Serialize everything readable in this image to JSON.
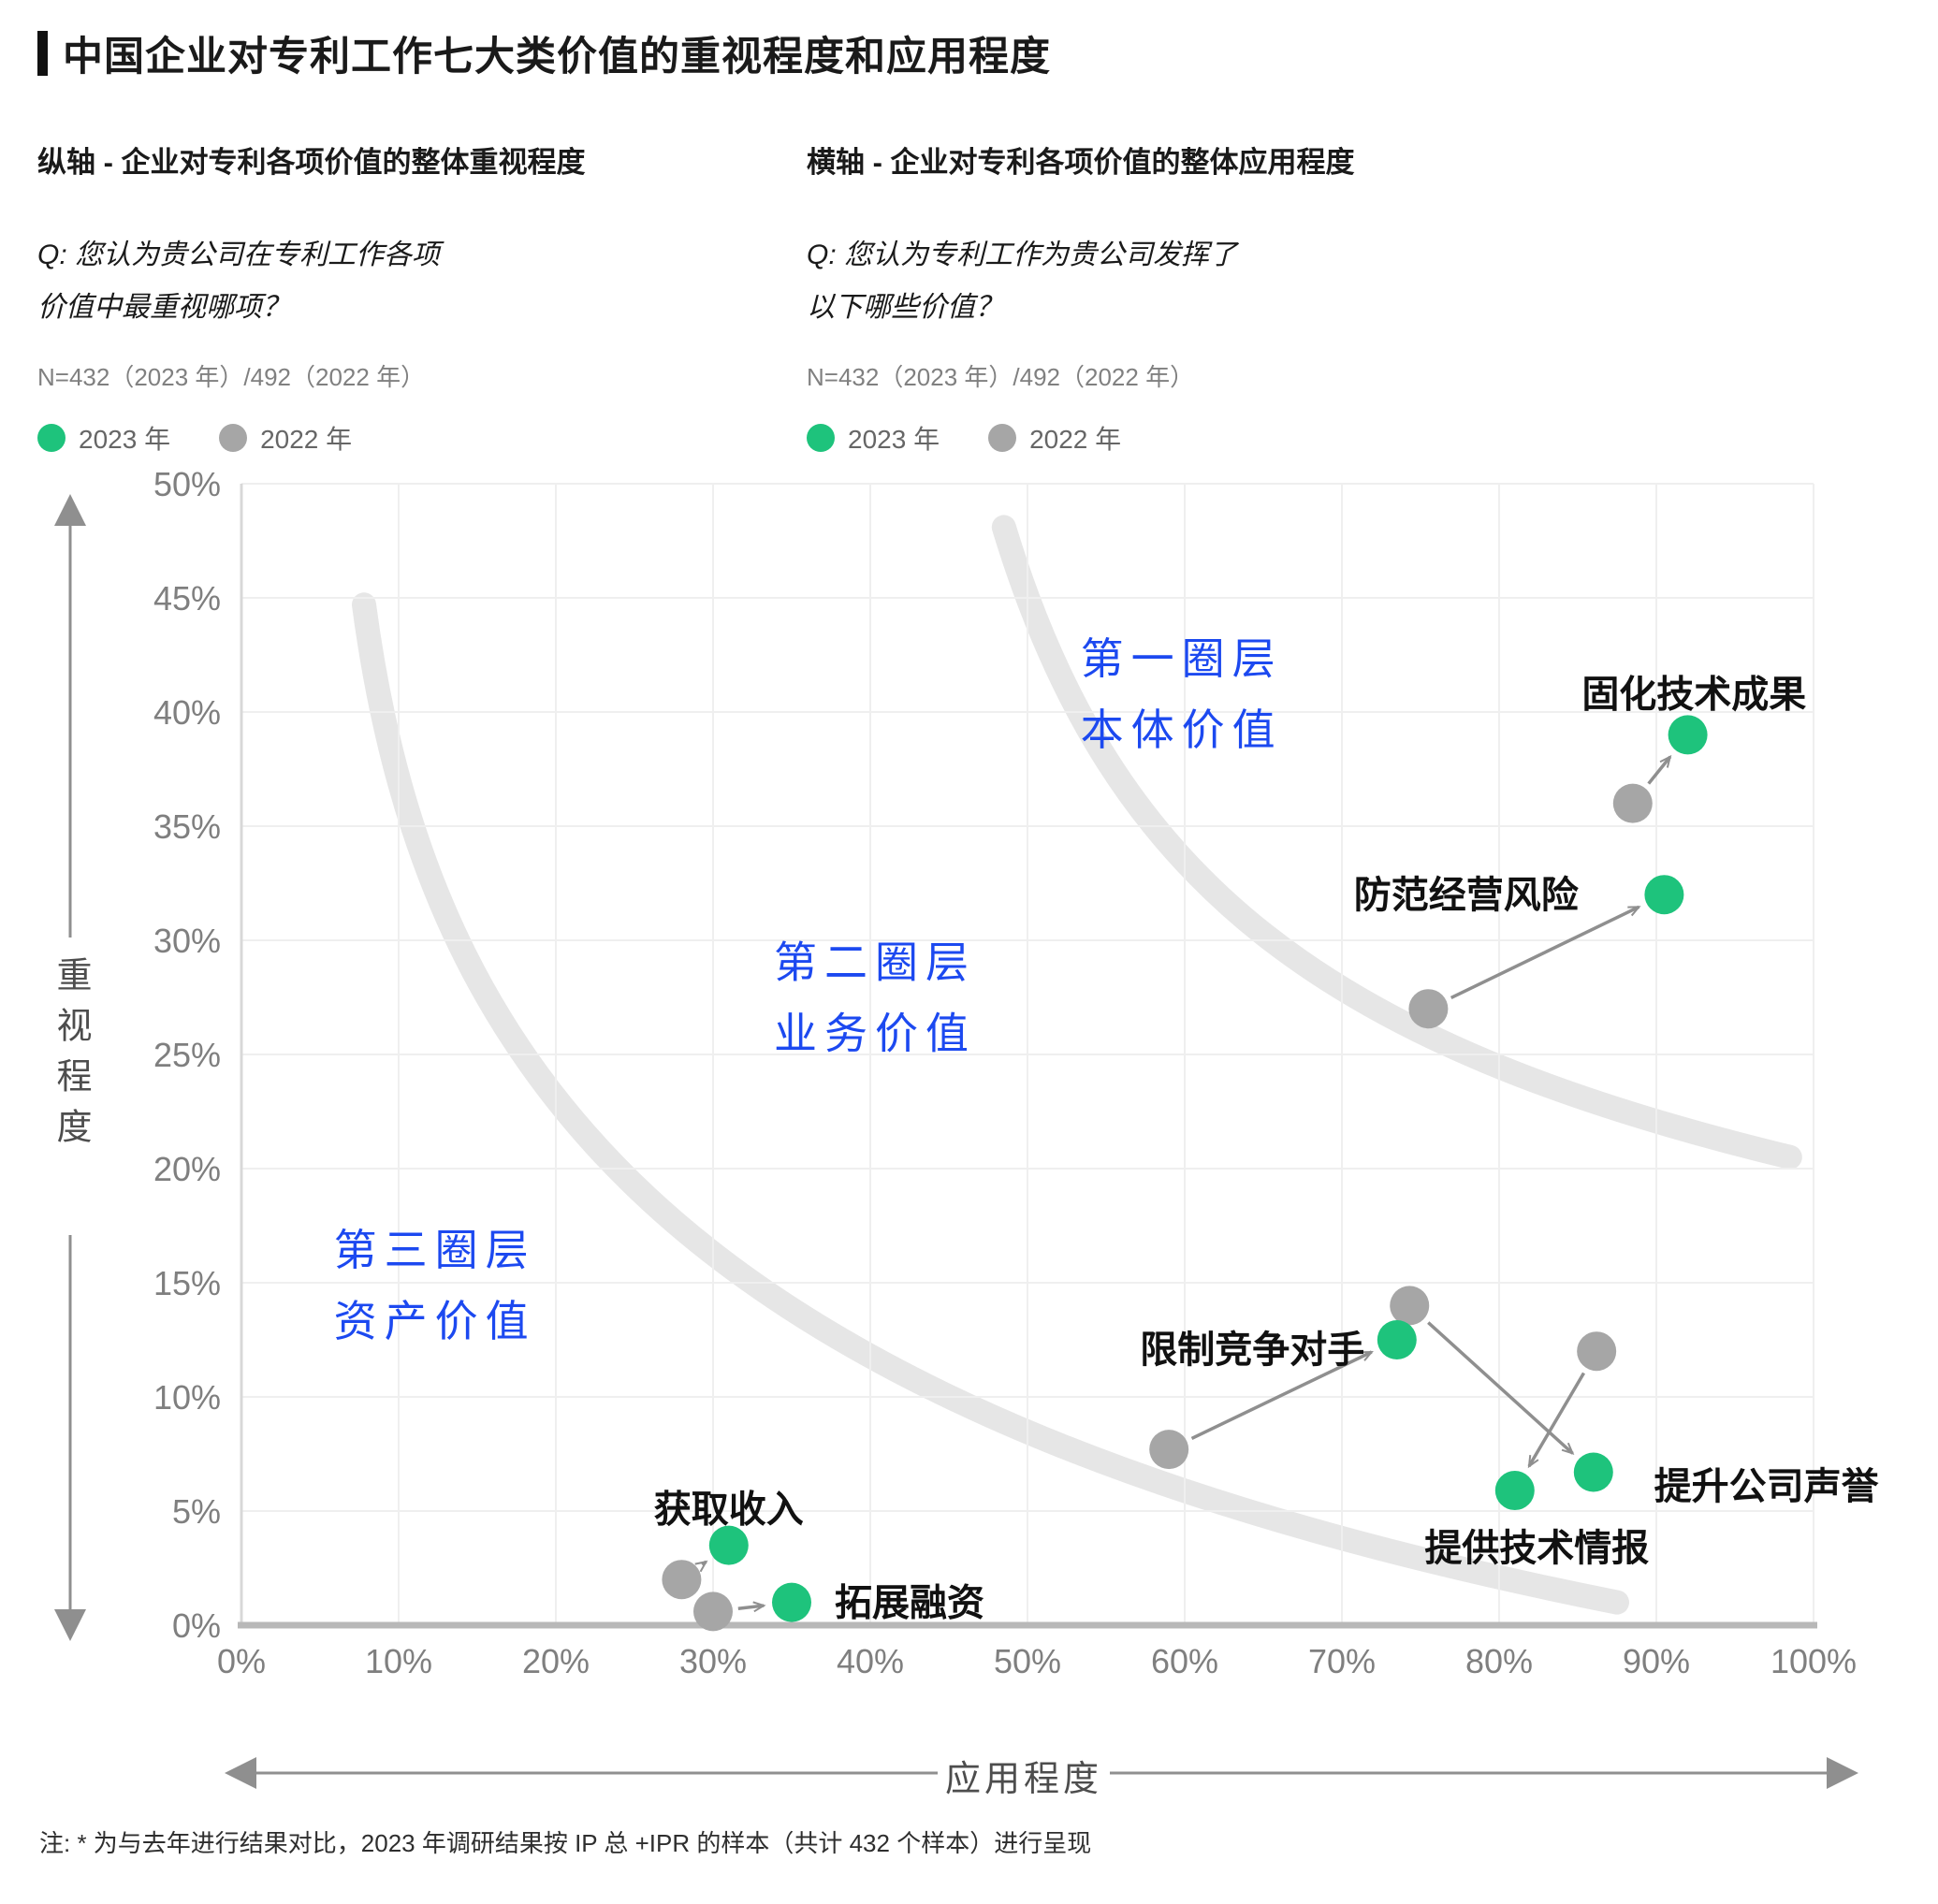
{
  "header": {
    "title": "中国企业对专利工作七大类价值的重视程度和应用程度"
  },
  "panels": {
    "left": {
      "axis_note": "纵轴 - 企业对专利各项价值的整体重视程度",
      "q_line1": "Q: 您认为贵公司在专利工作各项",
      "q_line2": "价值中最重视哪项？",
      "sample": "N=432（2023 年）/492（2022 年）"
    },
    "right": {
      "axis_note": "横轴 - 企业对专利各项价值的整体应用程度",
      "q_line1": "Q: 您认为专利工作为贵公司发挥了",
      "q_line2": "以下哪些价值？",
      "sample": "N=432（2023 年）/492（2022 年）"
    }
  },
  "legend": {
    "year_2023": "2023 年",
    "year_2022": "2022 年"
  },
  "footnote": "注: * 为与去年进行结果对比，2023 年调研结果按 IP 总 +IPR 的样本（共计 432 个样本）进行呈现",
  "colors": {
    "green": "#1EC37C",
    "gray": "#A6A6A6",
    "blue": "#1C49F0",
    "arrow": "#8F8F8F",
    "grid": "#EFEFEF",
    "axis_bottom": "#B8B8B8",
    "axis_left": "#D8D8D8",
    "arc": "#E6E6E6",
    "tick_text": "#7F7F7F",
    "label_text": "#111111"
  },
  "chart_data": {
    "type": "scatter",
    "title": "中国企业对专利工作七大类价值的重视程度和应用程度",
    "xlabel": "应用程度",
    "ylabel": "重视程度",
    "xlim": [
      0,
      100
    ],
    "ylim": [
      0,
      50
    ],
    "x_tick_step": 10,
    "y_tick_step": 5,
    "grid": true,
    "legend_position": "top",
    "series": [
      {
        "name": "2023 年",
        "color": "#1EC37C",
        "points": [
          {
            "label": "固化技术成果",
            "x": 92,
            "y": 39
          },
          {
            "label": "防范经营风险",
            "x": 90.5,
            "y": 32
          },
          {
            "label": "限制竞争对手",
            "x": 73.5,
            "y": 12.5
          },
          {
            "label": "提升公司声誉",
            "x": 86,
            "y": 6.7
          },
          {
            "label": "提供技术情报",
            "x": 81,
            "y": 5.9
          },
          {
            "label": "获取收入",
            "x": 31,
            "y": 3.5
          },
          {
            "label": "拓展融资",
            "x": 35,
            "y": 1
          }
        ]
      },
      {
        "name": "2022 年",
        "color": "#A6A6A6",
        "points": [
          {
            "label": "固化技术成果",
            "x": 88.5,
            "y": 36
          },
          {
            "label": "防范经营风险",
            "x": 75.5,
            "y": 27
          },
          {
            "label": "限制竞争对手",
            "x": 59,
            "y": 7.7
          },
          {
            "label": "提升公司声誉",
            "x": 74.3,
            "y": 14
          },
          {
            "label": "提供技术情报",
            "x": 86.2,
            "y": 12
          },
          {
            "label": "获取收入",
            "x": 28,
            "y": 2
          },
          {
            "label": "拓展融资",
            "x": 30,
            "y": 0.6
          }
        ]
      }
    ],
    "point_labels": [
      {
        "text": "固化技术成果",
        "x": 92.4,
        "y": 40.8
      },
      {
        "text": "防范经营风险",
        "x": 77.9,
        "y": 32.0
      },
      {
        "text": "限制竞争对手",
        "x": 64.3,
        "y": 12.1
      },
      {
        "text": "提升公司声誉",
        "x": 97.0,
        "y": 6.1
      },
      {
        "text": "提供技术情报",
        "x": 82.4,
        "y": 3.4
      },
      {
        "text": "获取收入",
        "x": 31.0,
        "y": 5.1
      },
      {
        "text": "拓展融资",
        "x": 42.5,
        "y": 1.0
      }
    ],
    "zones": [
      {
        "line1": "第一圈层",
        "line2": "本体价值",
        "x": 59.8,
        "y": 40.7
      },
      {
        "line1": "第二圈层",
        "line2": "业务价值",
        "x": 40.3,
        "y": 27.4
      },
      {
        "line1": "第三圈层",
        "line2": "资产价值",
        "x": 12.3,
        "y": 14.8
      }
    ],
    "arcs": [
      {
        "points": [
          [
            48.5,
            48.1
          ],
          [
            55.4,
            32.4
          ],
          [
            69.1,
            25.4
          ],
          [
            98.5,
            20.5
          ]
        ]
      },
      {
        "points": [
          [
            7.8,
            44.7
          ],
          [
            12.0,
            22.9
          ],
          [
            29.8,
            8.9
          ],
          [
            87.5,
            1.0
          ]
        ]
      }
    ]
  }
}
